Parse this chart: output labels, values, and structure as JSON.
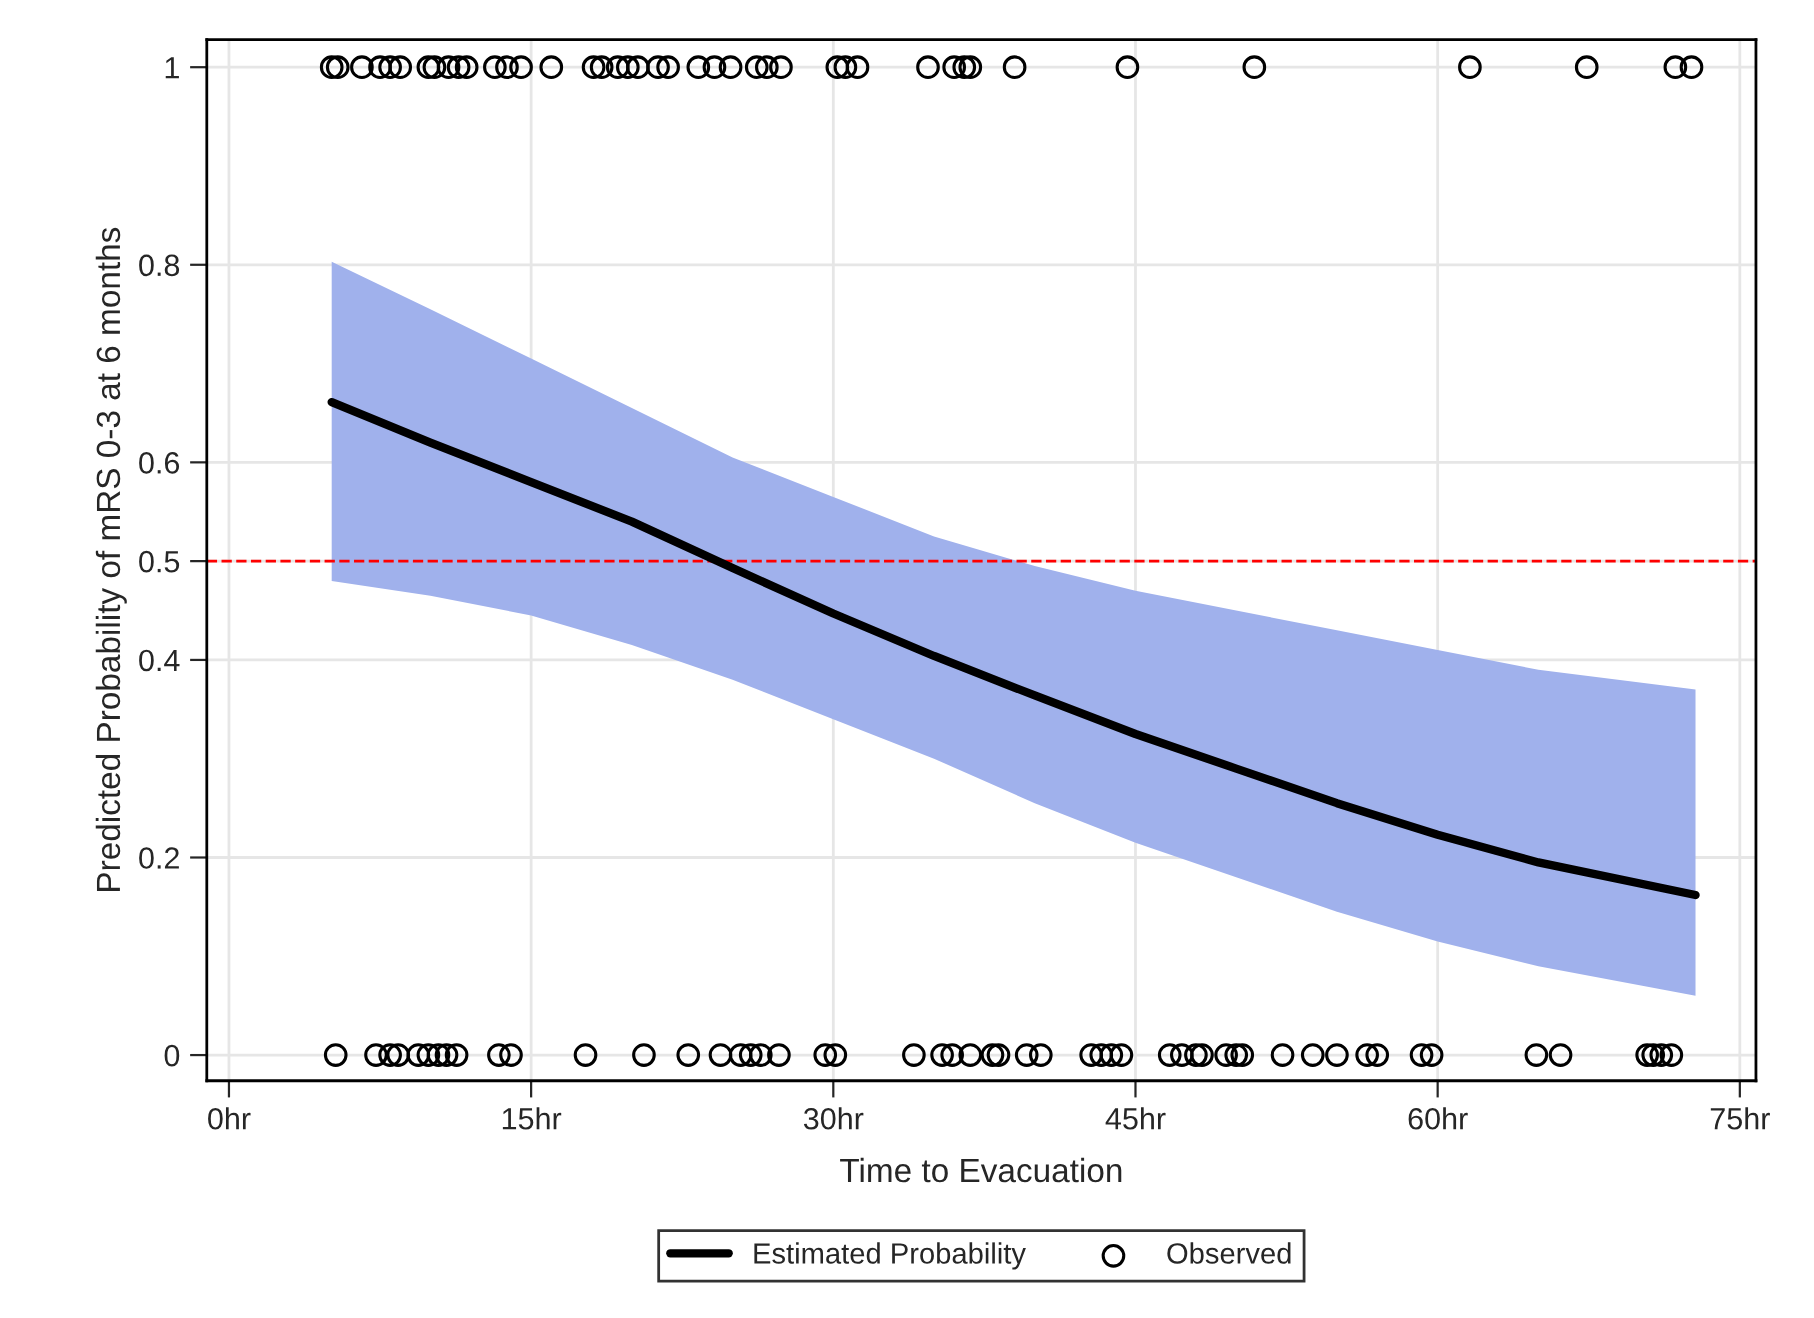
{
  "chart_data": {
    "type": "line",
    "xlabel": "Time to Evacuation",
    "ylabel": "Predicted Probability of mRS 0-3 at 6 months",
    "xlim": [
      -1.1,
      75.8
    ],
    "ylim": [
      -0.026,
      1.028
    ],
    "xticks": [
      {
        "value": 0,
        "label": "0hr"
      },
      {
        "value": 15,
        "label": "15hr"
      },
      {
        "value": 30,
        "label": "30hr"
      },
      {
        "value": 45,
        "label": "45hr"
      },
      {
        "value": 60,
        "label": "60hr"
      },
      {
        "value": 75,
        "label": "75hr"
      }
    ],
    "yticks": [
      0,
      0.2,
      0.4,
      0.5,
      0.6,
      0.8,
      1
    ],
    "grid": true,
    "legend": "bottom",
    "ref_lines": [
      {
        "axis": "y",
        "value": 0.5,
        "color": "#ff0000",
        "line_style": "dashed"
      }
    ],
    "series": [
      {
        "name": "Estimated Probability",
        "color": "#000000",
        "marker": "none",
        "line_style": "solid",
        "x": [
          5.1,
          10,
          15,
          20,
          25,
          30,
          35,
          40,
          45,
          50,
          55,
          60,
          65,
          72.8
        ],
        "values": [
          0.661,
          0.62,
          0.58,
          0.54,
          0.493,
          0.447,
          0.404,
          0.364,
          0.325,
          0.29,
          0.255,
          0.223,
          0.195,
          0.162
        ],
        "lower": [
          0.48,
          0.465,
          0.445,
          0.415,
          0.38,
          0.34,
          0.3,
          0.255,
          0.215,
          0.18,
          0.145,
          0.115,
          0.09,
          0.06
        ],
        "upper": [
          0.803,
          0.755,
          0.705,
          0.655,
          0.605,
          0.565,
          0.525,
          0.495,
          0.47,
          0.45,
          0.43,
          0.41,
          0.39,
          0.37
        ]
      },
      {
        "name": "Observed",
        "type": "scatter",
        "color": "#000000",
        "marker": "circle",
        "x": [
          5.1,
          5.4,
          6.6,
          7.5,
          8.0,
          8.5,
          9.9,
          10.2,
          10.9,
          11.4,
          11.8,
          13.2,
          13.8,
          14.5,
          16.0,
          18.1,
          18.5,
          19.3,
          19.8,
          20.3,
          21.3,
          21.8,
          23.3,
          24.1,
          24.9,
          26.2,
          26.7,
          27.4,
          30.2,
          30.6,
          31.2,
          34.7,
          36.0,
          36.5,
          36.8,
          39.0,
          44.6,
          50.9,
          61.6,
          67.4,
          71.8,
          72.6,
          5.3,
          7.3,
          8.0,
          8.4,
          9.4,
          9.9,
          10.4,
          10.8,
          11.3,
          13.4,
          14.0,
          17.7,
          20.6,
          22.8,
          24.4,
          25.4,
          25.9,
          26.4,
          27.3,
          29.6,
          30.1,
          34.0,
          35.4,
          35.9,
          36.8,
          37.9,
          38.2,
          39.6,
          40.3,
          42.8,
          43.3,
          43.8,
          44.3,
          46.7,
          47.3,
          48.0,
          48.3,
          49.5,
          50.0,
          50.3,
          52.3,
          53.8,
          55.0,
          56.5,
          57.0,
          59.2,
          59.7,
          64.9,
          66.1,
          70.4,
          70.7,
          71.1,
          71.6
        ],
        "values": [
          1,
          1,
          1,
          1,
          1,
          1,
          1,
          1,
          1,
          1,
          1,
          1,
          1,
          1,
          1,
          1,
          1,
          1,
          1,
          1,
          1,
          1,
          1,
          1,
          1,
          1,
          1,
          1,
          1,
          1,
          1,
          1,
          1,
          1,
          1,
          1,
          1,
          1,
          1,
          1,
          1,
          1,
          0,
          0,
          0,
          0,
          0,
          0,
          0,
          0,
          0,
          0,
          0,
          0,
          0,
          0,
          0,
          0,
          0,
          0,
          0,
          0,
          0,
          0,
          0,
          0,
          0,
          0,
          0,
          0,
          0,
          0,
          0,
          0,
          0,
          0,
          0,
          0,
          0,
          0,
          0,
          0,
          0,
          0,
          0,
          0,
          0,
          0,
          0,
          0,
          0,
          0,
          0,
          0,
          0
        ]
      }
    ]
  }
}
